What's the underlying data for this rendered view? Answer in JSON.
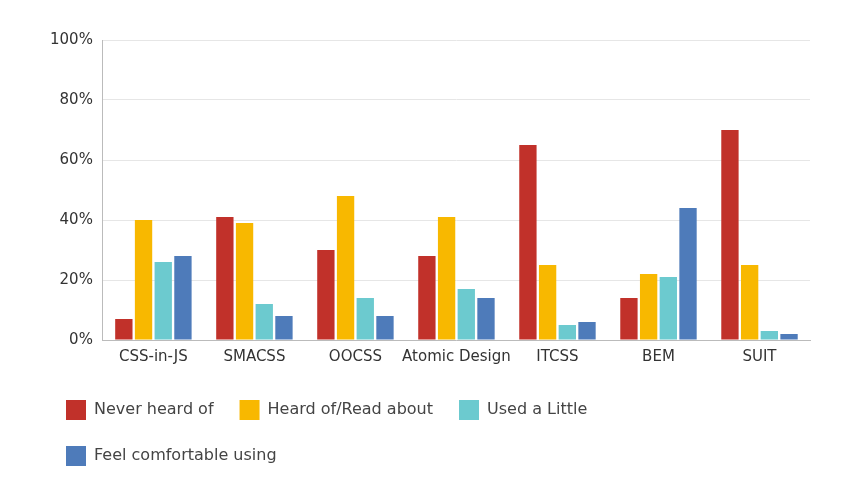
{
  "chart_data": {
    "type": "bar",
    "categories": [
      "CSS-in-JS",
      "SMACSS",
      "OOCSS",
      "Atomic Design",
      "ITCSS",
      "BEM",
      "SUIT"
    ],
    "series": [
      {
        "name": "Never heard of",
        "color": "#c1312a",
        "values": [
          7,
          41,
          30,
          28,
          65,
          14,
          70
        ]
      },
      {
        "name": "Heard of/Read about",
        "color": "#f8b800",
        "values": [
          40,
          39,
          48,
          41,
          25,
          22,
          25
        ]
      },
      {
        "name": "Used a Little",
        "color": "#6ccacf",
        "values": [
          26,
          12,
          14,
          17,
          5,
          21,
          3
        ]
      },
      {
        "name": "Feel comfortable using",
        "color": "#4e7bba",
        "values": [
          28,
          8,
          8,
          14,
          6,
          44,
          2
        ]
      }
    ],
    "ylim": [
      0,
      100
    ],
    "yticks": [
      {
        "value": 0,
        "label": "0%"
      },
      {
        "value": 20,
        "label": "20%"
      },
      {
        "value": 40,
        "label": "40%"
      },
      {
        "value": 60,
        "label": "60%"
      },
      {
        "value": 80,
        "label": "80%"
      },
      {
        "value": 100,
        "label": "100%"
      }
    ],
    "grid": true,
    "legend": "bottom"
  }
}
